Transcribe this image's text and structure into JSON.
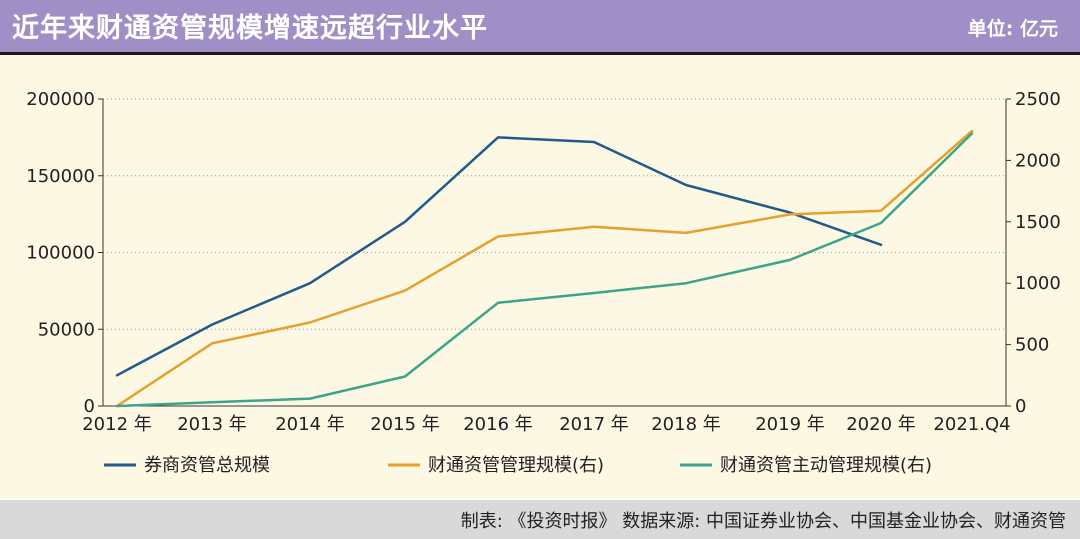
{
  "header": {
    "title": "近年来财通资管规模增速远超行业水平",
    "unit": "单位: 亿元"
  },
  "footer": {
    "source": "制表: 《投资时报》 数据来源: 中国证券业协会、中国基金业协会、财通资管"
  },
  "colors": {
    "header_bg": "#a08fc6",
    "panel_bg": "#fdf8e4",
    "footer_bg": "#d9d9d9"
  },
  "chart_data": {
    "type": "line",
    "categories": [
      "2012 年",
      "2013 年",
      "2014 年",
      "2015 年",
      "2016 年",
      "2017 年",
      "2018 年",
      "2019 年",
      "2020 年",
      "2021.Q4"
    ],
    "y_left": {
      "ylim": [
        0,
        200000
      ],
      "ticks": [
        "200000",
        "150000",
        "100000",
        "50000",
        "0"
      ],
      "tick_values": [
        200000,
        150000,
        100000,
        50000,
        0
      ]
    },
    "y_right": {
      "ylim": [
        0,
        2500
      ],
      "ticks": [
        "2500",
        "2000",
        "1500",
        "1000",
        "500",
        "0"
      ],
      "tick_values": [
        2500,
        2000,
        1500,
        1000,
        500,
        0
      ]
    },
    "grid": "horizontal-dotted",
    "legend_position": "bottom",
    "series": [
      {
        "name": "券商资管总规模",
        "axis": "left",
        "color": "#1f5b8c",
        "values": [
          20000,
          53000,
          80000,
          120000,
          175000,
          172000,
          144000,
          126000,
          105000,
          null
        ]
      },
      {
        "name": "财通资管管理规模(右)",
        "axis": "right",
        "color": "#e6a02c",
        "values": [
          0,
          510,
          680,
          940,
          1380,
          1460,
          1410,
          1560,
          1590,
          2240
        ]
      },
      {
        "name": "财通资管主动管理规模(右)",
        "axis": "right",
        "color": "#3aa58a",
        "values": [
          0,
          30,
          60,
          240,
          840,
          920,
          1000,
          1190,
          1490,
          2220
        ]
      }
    ]
  }
}
